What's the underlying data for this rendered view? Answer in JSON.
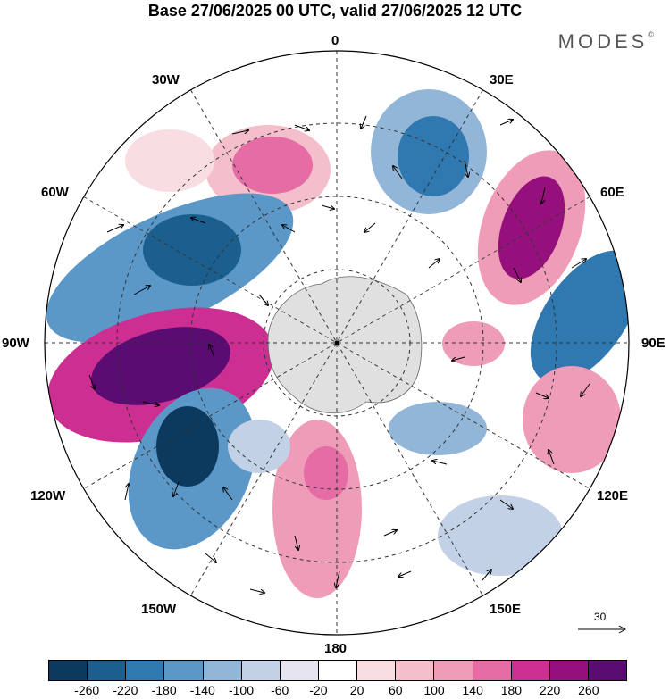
{
  "title": "Base 27/06/2025 00 UTC, valid 27/06/2025 12 UTC",
  "brand": "MODES",
  "brand_mark": "©",
  "meridian_labels": {
    "m0": "0",
    "m30e": "30E",
    "m60e": "60E",
    "m90e": "90E",
    "m120e": "120E",
    "m150e": "150E",
    "m180": "180",
    "m150w": "150W",
    "m120w": "120W",
    "m90w": "90W",
    "m60w": "60W",
    "m30w": "30W"
  },
  "vector_scale": "30",
  "colorbar": {
    "colors": [
      "#0b3a5e",
      "#1b5f8f",
      "#3079b0",
      "#5b98c8",
      "#92b6d8",
      "#c2d1e6",
      "#e6e4f1",
      "#ffffff",
      "#f8dde2",
      "#f4bfcb",
      "#ef9cb8",
      "#e66ca5",
      "#cc2e92",
      "#96107d",
      "#5b0c73"
    ],
    "ticks": [
      "-260",
      "-220",
      "-180",
      "-140",
      "-100",
      "-60",
      "-20",
      "20",
      "60",
      "100",
      "140",
      "180",
      "220",
      "260"
    ]
  }
}
